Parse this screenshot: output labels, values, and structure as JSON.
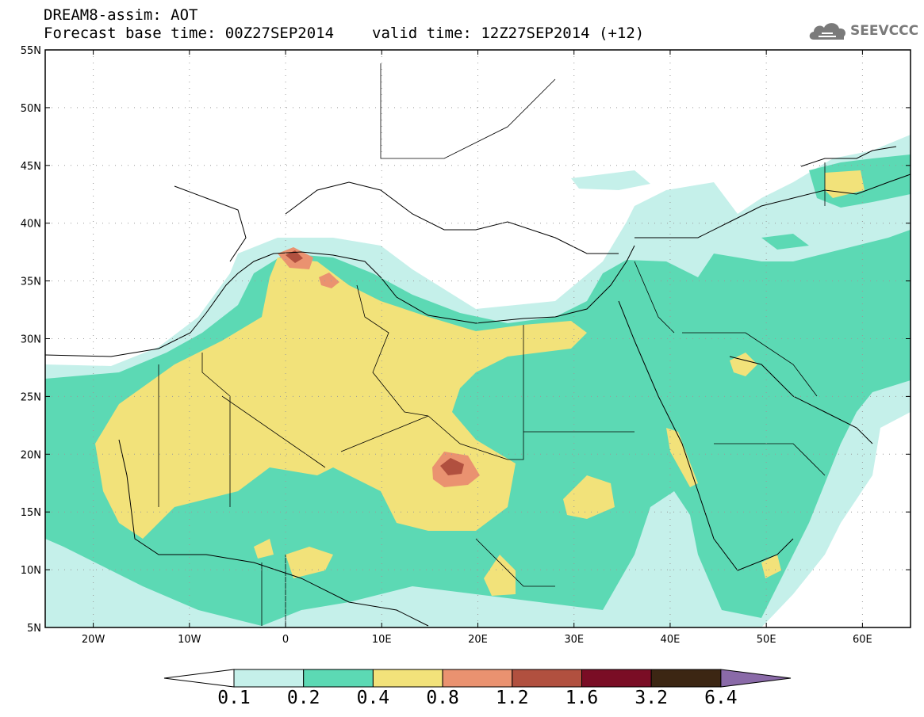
{
  "header": {
    "title_line1": "DREAM8-assim: AOT",
    "base_time": "Forecast base time: 00Z27SEP2014",
    "valid_time": "valid time: 12Z27SEP2014 (+12)"
  },
  "logo": {
    "text": "SEEVCCC",
    "icon": "cloud-icon"
  },
  "map": {
    "lat_labels": [
      "55N",
      "50N",
      "45N",
      "40N",
      "35N",
      "30N",
      "25N",
      "20N",
      "15N",
      "10N",
      "5N"
    ],
    "lon_labels": [
      "20W",
      "10W",
      "0",
      "10E",
      "20E",
      "30E",
      "40E",
      "50E",
      "60E"
    ],
    "lon_range": [
      -25,
      65
    ],
    "lat_range": [
      5,
      55
    ],
    "grid": "dotted"
  },
  "colorbar": {
    "levels": [
      "0.1",
      "0.2",
      "0.4",
      "0.8",
      "1.2",
      "1.6",
      "3.2",
      "6.4"
    ],
    "colors": [
      "#ffffff",
      "#c5f0ea",
      "#5cd9b4",
      "#f2e27a",
      "#ea9270",
      "#b1503f",
      "#7a0d25",
      "#3c2613",
      "#8a6aa8"
    ]
  }
}
